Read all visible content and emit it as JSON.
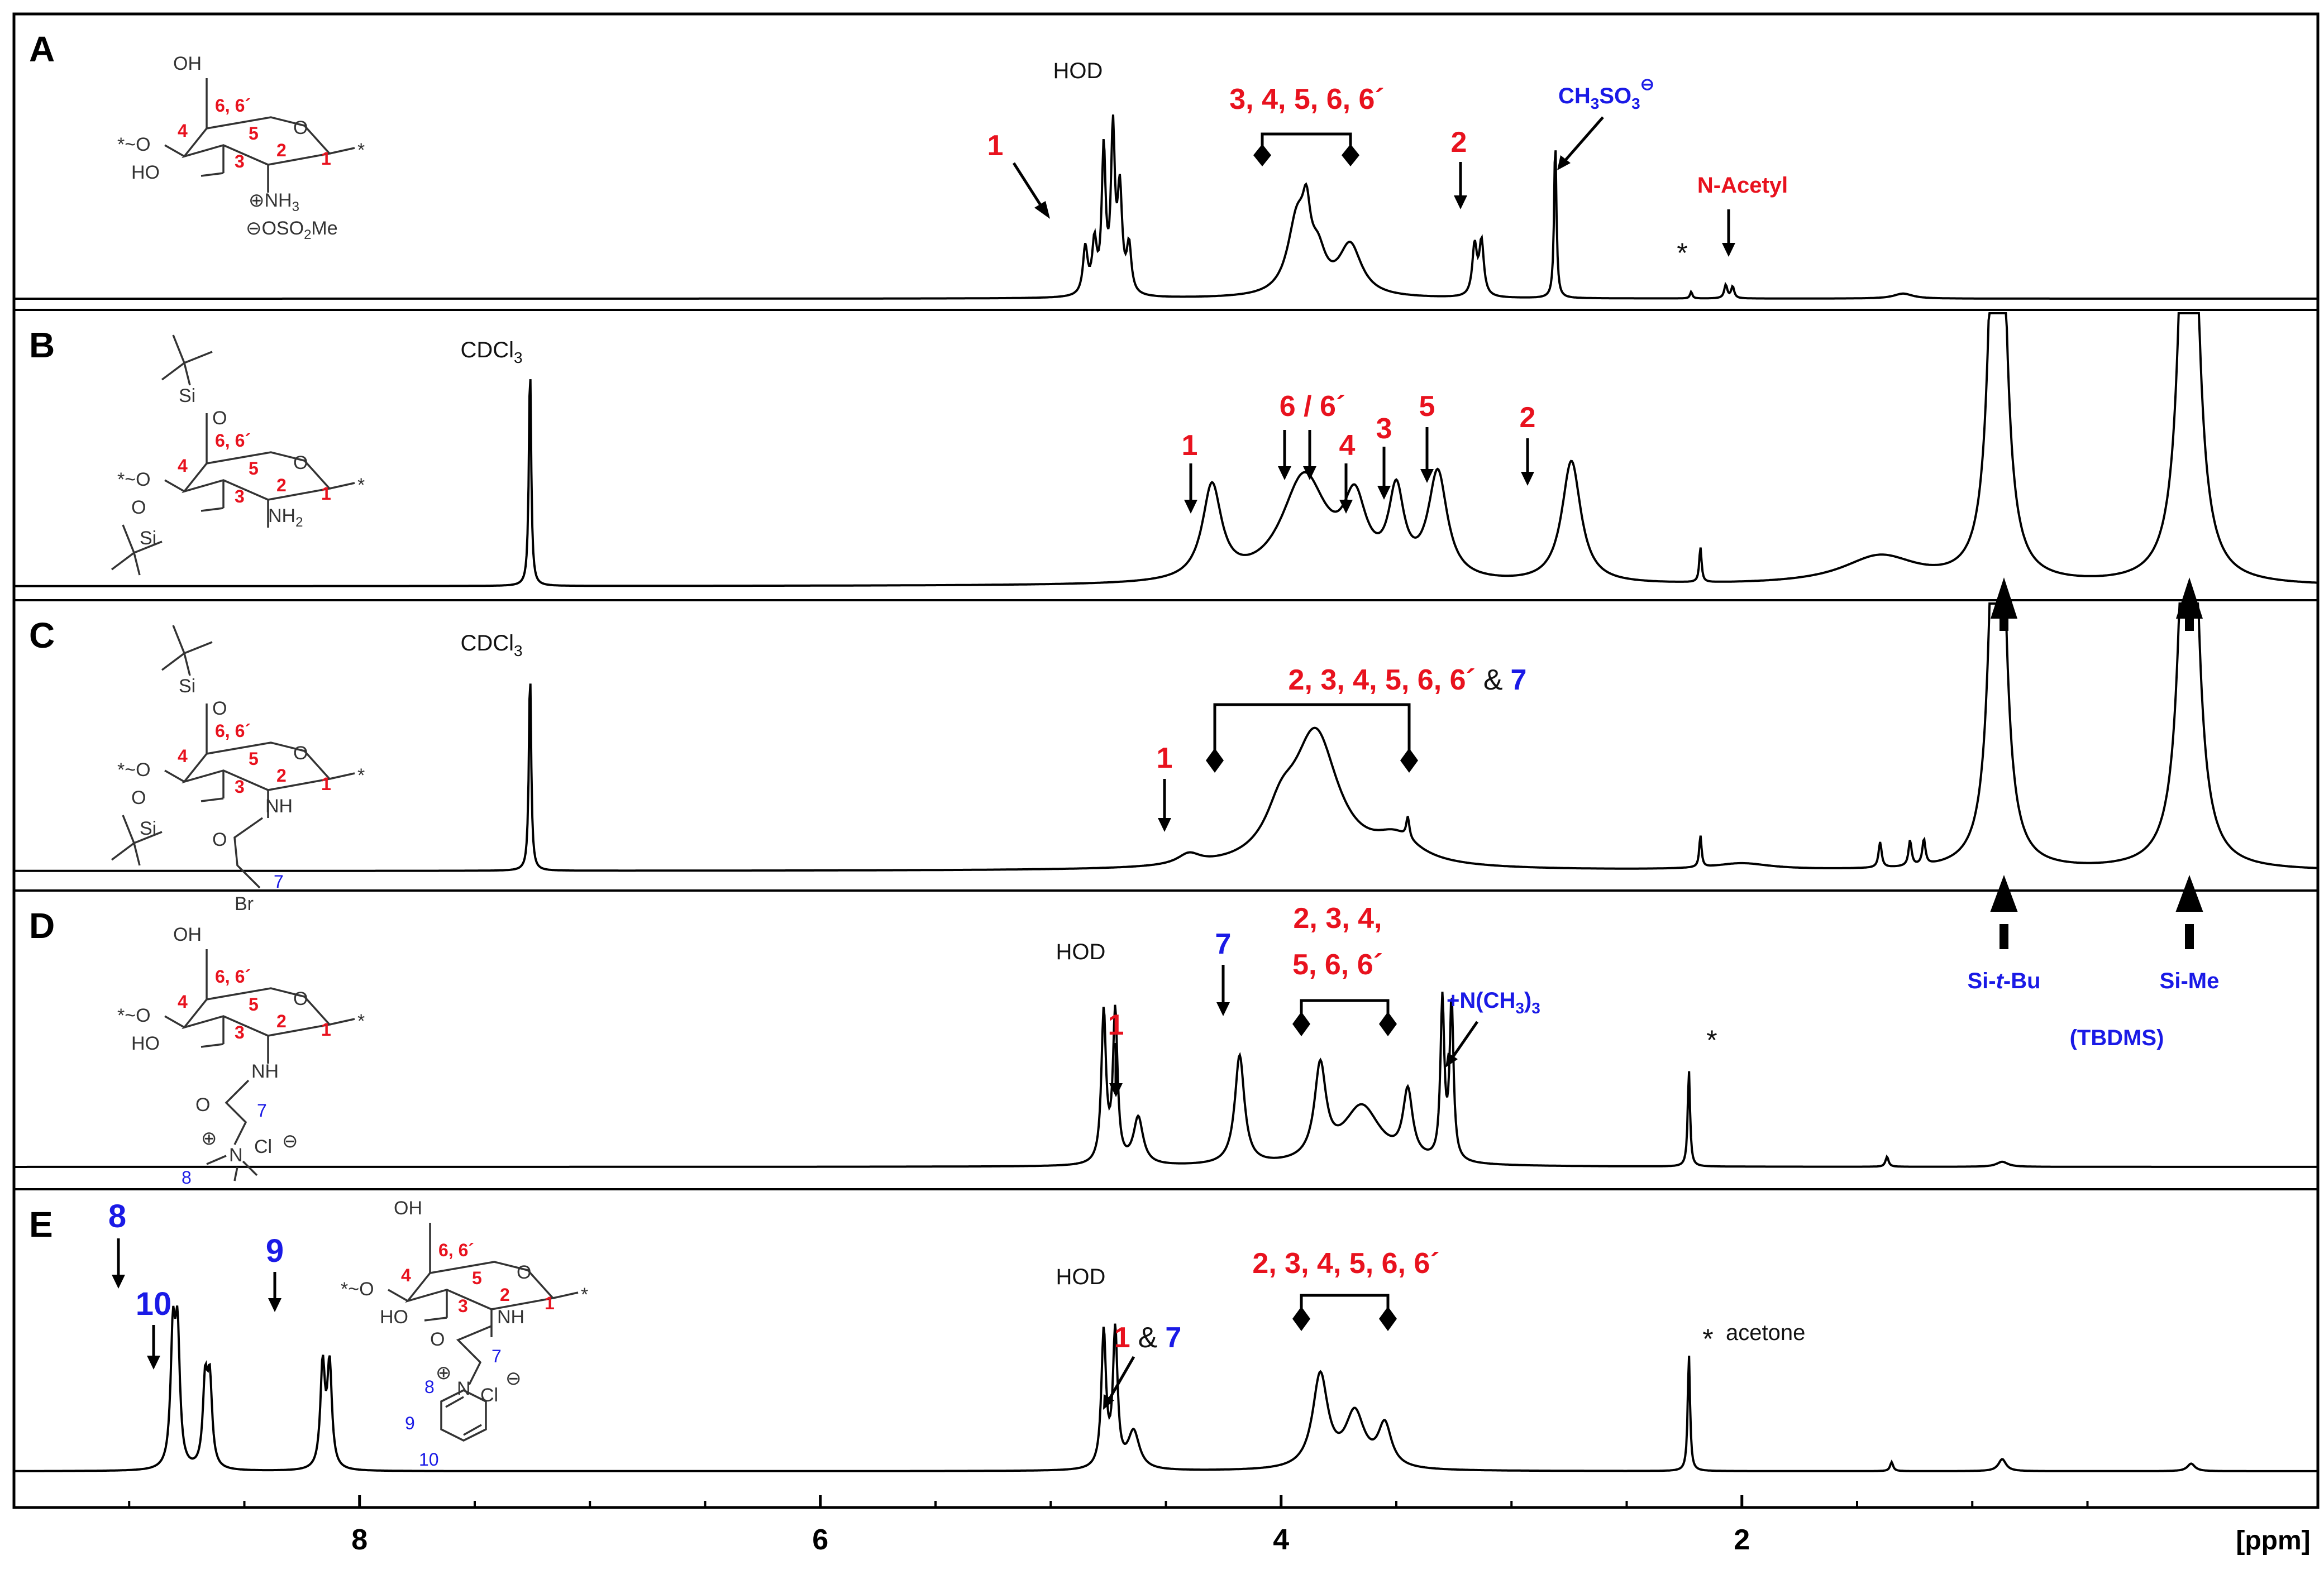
{
  "chart_data": {
    "type": "line",
    "xlabel": "[ppm]",
    "xlim": [
      9.5,
      -0.5
    ],
    "x_ticks": [
      "8",
      "6",
      "4",
      "2"
    ],
    "panels": [
      {
        "panel": "A",
        "peaks": [
          {
            "ppm": 4.85,
            "h": 0.28,
            "w": 0.012
          },
          {
            "ppm": 4.81,
            "h": 0.3,
            "w": 0.012
          },
          {
            "ppm": 4.77,
            "h": 0.85,
            "w": 0.01
          },
          {
            "ppm": 4.73,
            "h": 0.95,
            "w": 0.01
          },
          {
            "ppm": 4.7,
            "h": 0.6,
            "w": 0.012
          },
          {
            "ppm": 4.66,
            "h": 0.28,
            "w": 0.012
          },
          {
            "ppm": 3.93,
            "h": 0.45,
            "w": 0.05
          },
          {
            "ppm": 3.89,
            "h": 0.3,
            "w": 0.02
          },
          {
            "ppm": 3.84,
            "h": 0.2,
            "w": 0.04
          },
          {
            "ppm": 3.7,
            "h": 0.3,
            "w": 0.06
          },
          {
            "ppm": 3.16,
            "h": 0.3,
            "w": 0.012
          },
          {
            "ppm": 3.13,
            "h": 0.32,
            "w": 0.012
          },
          {
            "ppm": 2.81,
            "h": 0.95,
            "w": 0.006
          },
          {
            "ppm": 2.07,
            "h": 0.08,
            "w": 0.008
          },
          {
            "ppm": 2.04,
            "h": 0.07,
            "w": 0.008
          },
          {
            "ppm": 2.22,
            "h": 0.04,
            "w": 0.006
          },
          {
            "ppm": 1.3,
            "h": 0.03,
            "w": 0.05
          }
        ],
        "labels": [
          {
            "text": "1",
            "color": "red"
          },
          {
            "text": "HOD",
            "color": "black"
          },
          {
            "text": "3, 4, 5, 6, 6´",
            "color": "red"
          },
          {
            "text": "2",
            "color": "red"
          },
          {
            "text": "CH3SO3⊖",
            "color": "blue"
          },
          {
            "text": "N-Acetyl",
            "color": "red"
          },
          {
            "text": "*",
            "color": "black"
          }
        ]
      },
      {
        "panel": "B",
        "peaks": [
          {
            "ppm": 7.26,
            "h": 0.95,
            "w": 0.006
          },
          {
            "ppm": 4.3,
            "h": 0.4,
            "w": 0.05
          },
          {
            "ppm": 3.9,
            "h": 0.45,
            "w": 0.12
          },
          {
            "ppm": 3.68,
            "h": 0.3,
            "w": 0.06
          },
          {
            "ppm": 3.5,
            "h": 0.35,
            "w": 0.04
          },
          {
            "ppm": 3.32,
            "h": 0.45,
            "w": 0.05
          },
          {
            "ppm": 2.74,
            "h": 0.52,
            "w": 0.05
          },
          {
            "ppm": 2.18,
            "h": 0.15,
            "w": 0.006
          },
          {
            "ppm": 1.4,
            "h": 0.12,
            "w": 0.2
          },
          {
            "ppm": 0.89,
            "h": 3.0,
            "w": 0.03
          },
          {
            "ppm": 0.06,
            "h": 3.0,
            "w": 0.035
          }
        ],
        "labels": [
          {
            "text": "CDCl3",
            "color": "black"
          },
          {
            "text": "1",
            "color": "red"
          },
          {
            "text": "6 / 6´",
            "color": "red"
          },
          {
            "text": "4",
            "color": "red"
          },
          {
            "text": "3",
            "color": "red"
          },
          {
            "text": "5",
            "color": "red"
          },
          {
            "text": "2",
            "color": "red"
          }
        ]
      },
      {
        "panel": "C",
        "peaks": [
          {
            "ppm": 7.26,
            "h": 0.95,
            "w": 0.006
          },
          {
            "ppm": 4.4,
            "h": 0.05,
            "w": 0.06
          },
          {
            "ppm": 3.85,
            "h": 0.62,
            "w": 0.12
          },
          {
            "ppm": 4.0,
            "h": 0.18,
            "w": 0.08
          },
          {
            "ppm": 3.5,
            "h": 0.12,
            "w": 0.12
          },
          {
            "ppm": 3.45,
            "h": 0.1,
            "w": 0.008
          },
          {
            "ppm": 2.18,
            "h": 0.15,
            "w": 0.006
          },
          {
            "ppm": 2.0,
            "h": 0.03,
            "w": 0.15
          },
          {
            "ppm": 1.4,
            "h": 0.12,
            "w": 0.008
          },
          {
            "ppm": 1.27,
            "h": 0.12,
            "w": 0.008
          },
          {
            "ppm": 1.21,
            "h": 0.12,
            "w": 0.008
          },
          {
            "ppm": 0.89,
            "h": 3.0,
            "w": 0.03
          },
          {
            "ppm": 0.06,
            "h": 3.0,
            "w": 0.035
          }
        ],
        "labels": [
          {
            "text": "CDCl3",
            "color": "black"
          },
          {
            "text": "1",
            "color": "red"
          },
          {
            "text": "2, 3, 4, 5, 6, 6´",
            "color": "red"
          },
          {
            "text": "&",
            "color": "black"
          },
          {
            "text": "7",
            "color": "blue"
          }
        ]
      },
      {
        "panel": "D",
        "peaks": [
          {
            "ppm": 4.77,
            "h": 0.9,
            "w": 0.012
          },
          {
            "ppm": 4.72,
            "h": 0.9,
            "w": 0.012
          },
          {
            "ppm": 4.62,
            "h": 0.28,
            "w": 0.025
          },
          {
            "ppm": 4.18,
            "h": 0.65,
            "w": 0.025
          },
          {
            "ppm": 3.83,
            "h": 0.55,
            "w": 0.03
          },
          {
            "ppm": 3.65,
            "h": 0.35,
            "w": 0.1
          },
          {
            "ppm": 3.45,
            "h": 0.4,
            "w": 0.025
          },
          {
            "ppm": 3.3,
            "h": 0.95,
            "w": 0.01
          },
          {
            "ppm": 3.26,
            "h": 0.95,
            "w": 0.01
          },
          {
            "ppm": 2.23,
            "h": 0.58,
            "w": 0.006
          },
          {
            "ppm": 1.37,
            "h": 0.06,
            "w": 0.008
          },
          {
            "ppm": 0.87,
            "h": 0.03,
            "w": 0.03
          }
        ],
        "labels": [
          {
            "text": "HOD",
            "color": "black"
          },
          {
            "text": "1",
            "color": "red"
          },
          {
            "text": "7",
            "color": "blue"
          },
          {
            "text": "2, 3, 4,",
            "color": "red"
          },
          {
            "text": "5, 6, 6´",
            "color": "red"
          },
          {
            "text": "+N(CH3)3",
            "color": "blue"
          },
          {
            "text": "*",
            "color": "black"
          },
          {
            "text": "Si-t-Bu",
            "color": "blue"
          },
          {
            "text": "Si-Me",
            "color": "blue"
          },
          {
            "text": "(TBDMS)",
            "color": "blue"
          }
        ]
      },
      {
        "panel": "E",
        "peaks": [
          {
            "ppm": 8.81,
            "h": 0.85,
            "w": 0.012
          },
          {
            "ppm": 8.79,
            "h": 0.85,
            "w": 0.012
          },
          {
            "ppm": 8.67,
            "h": 0.55,
            "w": 0.012
          },
          {
            "ppm": 8.65,
            "h": 0.55,
            "w": 0.012
          },
          {
            "ppm": 8.16,
            "h": 0.68,
            "w": 0.012
          },
          {
            "ppm": 8.13,
            "h": 0.68,
            "w": 0.012
          },
          {
            "ppm": 4.77,
            "h": 0.9,
            "w": 0.012
          },
          {
            "ppm": 4.72,
            "h": 0.9,
            "w": 0.012
          },
          {
            "ppm": 4.64,
            "h": 0.25,
            "w": 0.03
          },
          {
            "ppm": 3.83,
            "h": 0.62,
            "w": 0.04
          },
          {
            "ppm": 3.68,
            "h": 0.36,
            "w": 0.05
          },
          {
            "ppm": 3.55,
            "h": 0.28,
            "w": 0.035
          },
          {
            "ppm": 2.23,
            "h": 0.78,
            "w": 0.006
          },
          {
            "ppm": 1.35,
            "h": 0.06,
            "w": 0.008
          },
          {
            "ppm": 0.87,
            "h": 0.08,
            "w": 0.02
          },
          {
            "ppm": 0.05,
            "h": 0.05,
            "w": 0.02
          }
        ],
        "labels": [
          {
            "text": "8",
            "color": "blue"
          },
          {
            "text": "10",
            "color": "blue"
          },
          {
            "text": "9",
            "color": "blue"
          },
          {
            "text": "HOD",
            "color": "black"
          },
          {
            "text": "1",
            "color": "red"
          },
          {
            "text": "&",
            "color": "black"
          },
          {
            "text": "7",
            "color": "blue"
          },
          {
            "text": "2, 3, 4, 5, 6, 6´",
            "color": "red"
          },
          {
            "text": "*",
            "color": "black"
          },
          {
            "text": "acetone",
            "color": "black"
          }
        ]
      }
    ]
  },
  "colors": {
    "red": "#e8121e",
    "blue": "#1a1ae6",
    "black": "#111111",
    "line": "#000000"
  },
  "text": {
    "panels": [
      "A",
      "B",
      "C",
      "D",
      "E"
    ],
    "xlabel": "[ppm]",
    "ticks": [
      "8",
      "6",
      "4",
      "2"
    ],
    "A": {
      "hod": "HOD",
      "n1": "1",
      "range": "3, 4, 5, 6, 6´",
      "n2": "2",
      "mesyl": "CH",
      "mesyl_sub1": "3",
      "mesyl_mid": "SO",
      "mesyl_sub2": "3",
      "mesyl_sup": "⊖",
      "nacetyl": "N-Acetyl",
      "star": "*"
    },
    "B": {
      "cdcl": "CDCl",
      "cdcl_sub": "3",
      "n1": "1",
      "n66": "6 / 6´",
      "n4": "4",
      "n3": "3",
      "n5": "5",
      "n2": "2"
    },
    "C": {
      "cdcl": "CDCl",
      "cdcl_sub": "3",
      "n1": "1",
      "range": "2, 3, 4, 5, 6, 6´",
      "amp": "&",
      "n7": "7"
    },
    "D": {
      "hod": "HOD",
      "n1": "1",
      "n7": "7",
      "range1": "2, 3, 4,",
      "range2": "5, 6, 6´",
      "nme": "+N(CH",
      "nme_sub": "3",
      "nme_end": ")",
      "nme_sub2": "3",
      "star": "*",
      "sitbu_a": "Si-",
      "sitbu_b": "t",
      "sitbu_c": "-Bu",
      "sime": "Si-Me",
      "tbdms": "(TBDMS)"
    },
    "E": {
      "n8": "8",
      "n10": "10",
      "n9": "9",
      "hod": "HOD",
      "n1": "1",
      "amp": "&",
      "n7": "7",
      "range": "2, 3, 4, 5, 6, 6´",
      "star": "*",
      "acetone": "acetone"
    },
    "struct": {
      "oh": "OH",
      "ho": "HO",
      "o": "O",
      "nh": "NH",
      "nh2": "NH",
      "nh2_sub": "2",
      "nh3": "NH",
      "nh3_sub": "3",
      "oso2me": "OSO",
      "oso2me_sub": "2",
      "oso2me_end": "Me",
      "plus": "⊕",
      "minus": "⊖",
      "si": "Si",
      "br": "Br",
      "n": "N",
      "cl": "Cl",
      "r4": "4",
      "r66": "6, 6´",
      "r5": "5",
      "r3": "3",
      "r2": "2",
      "r1": "1",
      "b7": "7",
      "b8": "8",
      "b9": "9",
      "b10": "10",
      "star": "*"
    }
  }
}
